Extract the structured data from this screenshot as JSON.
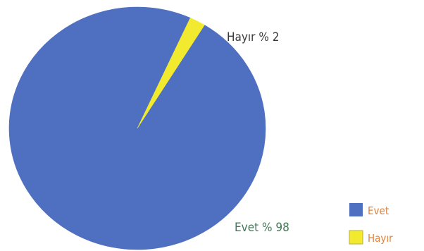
{
  "chart_data": {
    "type": "pie",
    "slices": [
      {
        "label": "Evet",
        "value": 98,
        "color": "#4f6fc0",
        "annotation": "Evet % 98",
        "annotation_color": "#3f7a55"
      },
      {
        "label": "Hayır",
        "value": 2,
        "color": "#f2ea2e",
        "annotation": "Hayır % 2",
        "annotation_color": "#3a3a3a"
      }
    ],
    "legend": {
      "position": "bottom-right",
      "items": [
        {
          "label": "Evet",
          "color": "#4f6fc0",
          "text_color": "#e0823c"
        },
        {
          "label": "Hayır",
          "color": "#f2ea2e",
          "text_color": "#e0823c"
        }
      ]
    }
  }
}
